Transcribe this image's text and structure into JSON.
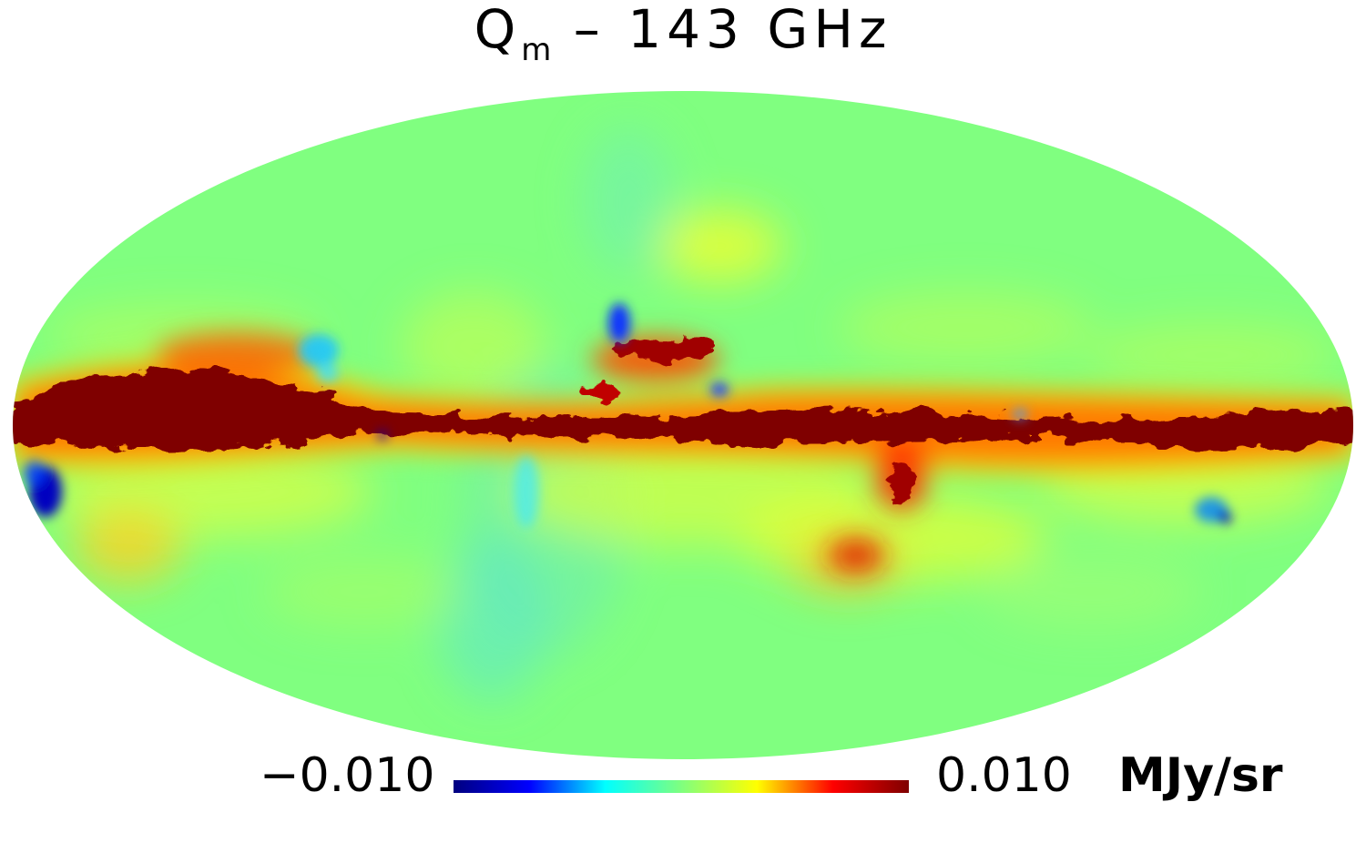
{
  "title": {
    "main": "Q",
    "subscript": "m",
    "rest": " – 143 GHz"
  },
  "colorbar": {
    "min_label": "−0.010",
    "max_label": "0.010",
    "unit": "MJy/sr",
    "min_value": -0.01,
    "max_value": 0.01,
    "colormap": [
      "#00007f",
      "#0000ff",
      "#00ffff",
      "#7fff7f",
      "#ffff00",
      "#ff0000",
      "#7f0000"
    ]
  },
  "map": {
    "projection": "mollweide",
    "background_value_color": "#80ff80",
    "galactic_plane_color": "#7f0000"
  }
}
